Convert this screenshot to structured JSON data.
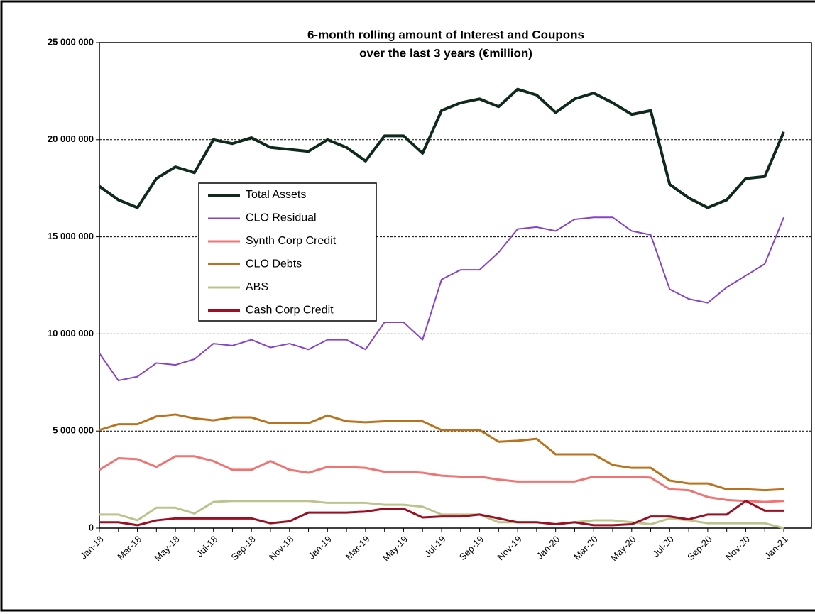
{
  "chart_data": {
    "type": "line",
    "title": [
      "6-month rolling amount of Interest and Coupons",
      "over the last 3 years (€million)"
    ],
    "categories": [
      "Jan-18",
      null,
      "Mar-18",
      null,
      "May-18",
      null,
      "Jul-18",
      null,
      "Sep-18",
      null,
      "Nov-18",
      null,
      "Jan-19",
      null,
      "Mar-19",
      null,
      "May-19",
      null,
      "Jul-19",
      null,
      "Sep-19",
      null,
      "Nov-19",
      null,
      "Jan-20",
      null,
      "Mar-20",
      null,
      "May-20",
      null,
      "Jul-20",
      null,
      "Sep-20",
      null,
      "Nov-20",
      null,
      "Jan-21"
    ],
    "series": [
      {
        "name": "Total Assets",
        "color": "#0f2a1c",
        "width": 4,
        "values": [
          17600000,
          16900000,
          16500000,
          18000000,
          18600000,
          18300000,
          20000000,
          19800000,
          20100000,
          19600000,
          19500000,
          19400000,
          20000000,
          19600000,
          18900000,
          20200000,
          20200000,
          19300000,
          21500000,
          21900000,
          22100000,
          21700000,
          22600000,
          22300000,
          21400000,
          22100000,
          22400000,
          21900000,
          21300000,
          21500000,
          17700000,
          17000000,
          16500000,
          16900000,
          18000000,
          18100000,
          20400000
        ]
      },
      {
        "name": "CLO Residual",
        "color": "#8444c8",
        "width": 2,
        "values": [
          9000000,
          7600000,
          7800000,
          8500000,
          8400000,
          8700000,
          9500000,
          9400000,
          9700000,
          9300000,
          9500000,
          9200000,
          9700000,
          9700000,
          9200000,
          10600000,
          10600000,
          9700000,
          12800000,
          13300000,
          13300000,
          14200000,
          15400000,
          15500000,
          15300000,
          15900000,
          16000000,
          16000000,
          15300000,
          15100000,
          12300000,
          11800000,
          11600000,
          12400000,
          13000000,
          13600000,
          16000000
        ]
      },
      {
        "name": "Synth Corp Credit",
        "color": "#f07474",
        "width": 3,
        "values": [
          3000000,
          3600000,
          3550000,
          3150000,
          3700000,
          3700000,
          3450000,
          3000000,
          3000000,
          3450000,
          3000000,
          2850000,
          3150000,
          3150000,
          3100000,
          2900000,
          2900000,
          2850000,
          2700000,
          2650000,
          2650000,
          2500000,
          2400000,
          2400000,
          2400000,
          2400000,
          2650000,
          2650000,
          2650000,
          2600000,
          2000000,
          1950000,
          1600000,
          1450000,
          1400000,
          1350000,
          1400000
        ]
      },
      {
        "name": "CLO Debts",
        "color": "#b8731e",
        "width": 3,
        "values": [
          5050000,
          5350000,
          5350000,
          5750000,
          5850000,
          5650000,
          5550000,
          5700000,
          5700000,
          5400000,
          5400000,
          5400000,
          5800000,
          5500000,
          5450000,
          5500000,
          5500000,
          5500000,
          5050000,
          5050000,
          5050000,
          4450000,
          4500000,
          4600000,
          3800000,
          3800000,
          3800000,
          3250000,
          3100000,
          3100000,
          2450000,
          2300000,
          2300000,
          2000000,
          2000000,
          1950000,
          2000000
        ]
      },
      {
        "name": "ABS",
        "color": "#bcc48e",
        "width": 3,
        "values": [
          700000,
          700000,
          400000,
          1050000,
          1050000,
          750000,
          1350000,
          1400000,
          1400000,
          1400000,
          1400000,
          1400000,
          1300000,
          1300000,
          1300000,
          1200000,
          1200000,
          1100000,
          700000,
          700000,
          700000,
          300000,
          300000,
          300000,
          200000,
          300000,
          400000,
          400000,
          300000,
          200000,
          500000,
          400000,
          250000,
          250000,
          250000,
          250000,
          0
        ]
      },
      {
        "name": "Cash Corp Credit",
        "color": "#9a1022",
        "width": 3,
        "values": [
          300000,
          300000,
          150000,
          400000,
          500000,
          500000,
          500000,
          500000,
          500000,
          250000,
          350000,
          800000,
          800000,
          800000,
          850000,
          1000000,
          1000000,
          550000,
          600000,
          600000,
          700000,
          500000,
          300000,
          300000,
          200000,
          300000,
          150000,
          150000,
          200000,
          600000,
          600000,
          450000,
          700000,
          700000,
          1400000,
          900000,
          900000
        ]
      }
    ],
    "ylim": [
      0,
      25000000
    ],
    "yticks": [
      0,
      {
        "value": 5000000,
        "label": "5 000 000"
      },
      {
        "value": 10000000,
        "label": "10 000 000"
      },
      {
        "value": 15000000,
        "label": "15 000 000"
      },
      {
        "value": 20000000,
        "label": "20 000 000"
      },
      {
        "value": 25000000,
        "label": "25 000 000"
      }
    ],
    "grid": true
  }
}
